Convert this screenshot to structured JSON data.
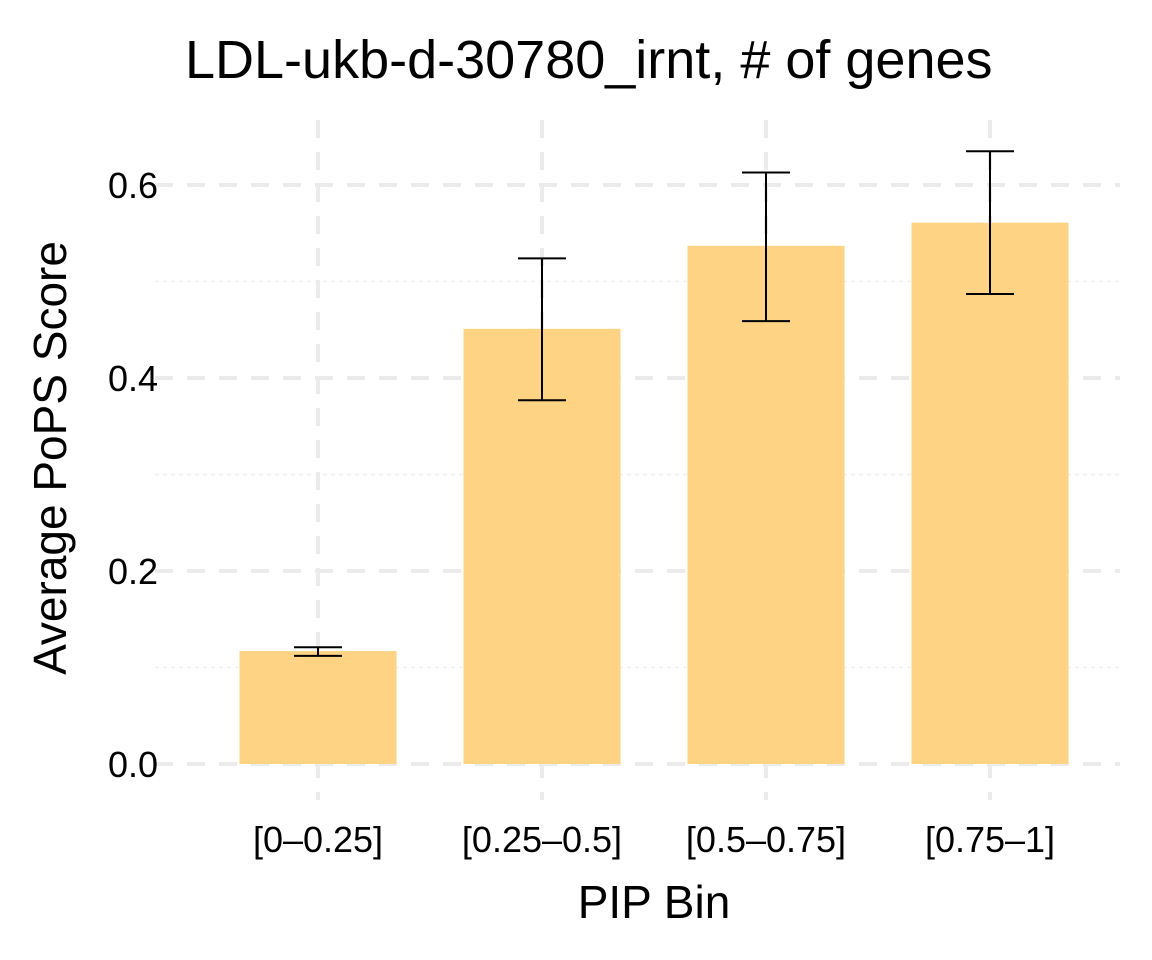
{
  "chart_data": {
    "type": "bar",
    "title": "LDL-ukb-d-30780_irnt, # of genes",
    "xlabel": "PIP Bin",
    "ylabel": "Average PoPS Score",
    "categories": [
      "[0–0.25]",
      "[0.25–0.5]",
      "[0.5–0.75]",
      "[0.75–1]"
    ],
    "values": [
      0.117,
      0.451,
      0.537,
      0.561
    ],
    "error_low": [
      0.112,
      0.377,
      0.459,
      0.487
    ],
    "error_high": [
      0.121,
      0.524,
      0.613,
      0.635
    ],
    "ylim": [
      0,
      0.65
    ],
    "yticks": [
      "0.0",
      "0.2",
      "0.4",
      "0.6"
    ],
    "grid": true,
    "bar_color": "#FED383"
  }
}
